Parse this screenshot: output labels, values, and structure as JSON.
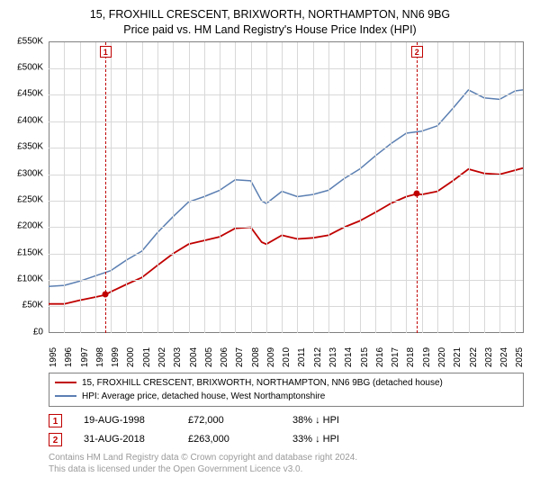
{
  "title": {
    "line1": "15, FROXHILL CRESCENT, BRIXWORTH, NORTHAMPTON, NN6 9BG",
    "line2": "Price paid vs. HM Land Registry's House Price Index (HPI)",
    "fontsize": 12.5,
    "color": "#000000"
  },
  "chart": {
    "type": "line",
    "background_color": "#ffffff",
    "grid_color": "#d8d8d8",
    "axis_color": "#808080",
    "xlim": [
      1995,
      2025.5
    ],
    "ylim": [
      0,
      550
    ],
    "y_unit": "K",
    "y_prefix": "£",
    "ytick_step": 50,
    "yticks": [
      0,
      50,
      100,
      150,
      200,
      250,
      300,
      350,
      400,
      450,
      500,
      550
    ],
    "xticks": [
      1995,
      1996,
      1997,
      1998,
      1999,
      2000,
      2001,
      2002,
      2003,
      2004,
      2005,
      2006,
      2007,
      2008,
      2009,
      2010,
      2011,
      2012,
      2013,
      2014,
      2015,
      2016,
      2017,
      2018,
      2019,
      2020,
      2021,
      2022,
      2023,
      2024,
      2025
    ],
    "tick_fontsize": 10,
    "series": [
      {
        "name": "property",
        "label": "15, FROXHILL CRESCENT, BRIXWORTH, NORTHAMPTON, NN6 9BG (detached house)",
        "color": "#c00000",
        "line_width": 1.8,
        "data": [
          [
            1995,
            55
          ],
          [
            1996,
            55
          ],
          [
            1997,
            62
          ],
          [
            1998,
            68
          ],
          [
            1998.63,
            72
          ],
          [
            1999,
            78
          ],
          [
            2000,
            92
          ],
          [
            2001,
            105
          ],
          [
            2002,
            128
          ],
          [
            2003,
            150
          ],
          [
            2004,
            168
          ],
          [
            2005,
            175
          ],
          [
            2006,
            182
          ],
          [
            2007,
            198
          ],
          [
            2008,
            200
          ],
          [
            2008.7,
            172
          ],
          [
            2009,
            168
          ],
          [
            2010,
            185
          ],
          [
            2011,
            178
          ],
          [
            2012,
            180
          ],
          [
            2013,
            185
          ],
          [
            2014,
            200
          ],
          [
            2015,
            212
          ],
          [
            2016,
            228
          ],
          [
            2017,
            245
          ],
          [
            2018,
            258
          ],
          [
            2018.66,
            263
          ],
          [
            2019,
            262
          ],
          [
            2020,
            268
          ],
          [
            2021,
            288
          ],
          [
            2022,
            310
          ],
          [
            2023,
            302
          ],
          [
            2024,
            300
          ],
          [
            2025,
            308
          ],
          [
            2025.5,
            312
          ]
        ]
      },
      {
        "name": "hpi",
        "label": "HPI: Average price, detached house, West Northamptonshire",
        "color": "#5b7fb2",
        "line_width": 1.5,
        "data": [
          [
            1995,
            88
          ],
          [
            1996,
            90
          ],
          [
            1997,
            98
          ],
          [
            1998,
            108
          ],
          [
            1999,
            118
          ],
          [
            2000,
            138
          ],
          [
            2001,
            155
          ],
          [
            2002,
            190
          ],
          [
            2003,
            220
          ],
          [
            2004,
            248
          ],
          [
            2005,
            258
          ],
          [
            2006,
            270
          ],
          [
            2007,
            290
          ],
          [
            2008,
            288
          ],
          [
            2008.7,
            250
          ],
          [
            2009,
            245
          ],
          [
            2010,
            268
          ],
          [
            2011,
            258
          ],
          [
            2012,
            262
          ],
          [
            2013,
            270
          ],
          [
            2014,
            292
          ],
          [
            2015,
            310
          ],
          [
            2016,
            335
          ],
          [
            2017,
            358
          ],
          [
            2018,
            378
          ],
          [
            2019,
            382
          ],
          [
            2020,
            392
          ],
          [
            2021,
            425
          ],
          [
            2022,
            460
          ],
          [
            2023,
            445
          ],
          [
            2024,
            442
          ],
          [
            2025,
            458
          ],
          [
            2025.5,
            460
          ]
        ]
      }
    ],
    "markers": [
      {
        "id": "1",
        "x": 1998.63,
        "y": 72,
        "color": "#c00000"
      },
      {
        "id": "2",
        "x": 2018.66,
        "y": 263,
        "color": "#c00000"
      }
    ]
  },
  "legend": {
    "border_color": "#808080",
    "fontsize": 10,
    "items": [
      {
        "color": "#c00000",
        "label": "15, FROXHILL CRESCENT, BRIXWORTH, NORTHAMPTON, NN6 9BG (detached house)"
      },
      {
        "color": "#5b7fb2",
        "label": "HPI: Average price, detached house, West Northamptonshire"
      }
    ]
  },
  "datapoints": {
    "fontsize": 11,
    "box_color": "#c00000",
    "rows": [
      {
        "id": "1",
        "date": "19-AUG-1998",
        "price": "£72,000",
        "pct": "38% ↓ HPI"
      },
      {
        "id": "2",
        "date": "31-AUG-2018",
        "price": "£263,000",
        "pct": "33% ↓ HPI"
      }
    ]
  },
  "footer": {
    "line1": "Contains HM Land Registry data © Crown copyright and database right 2024.",
    "line2": "This data is licensed under the Open Government Licence v3.0.",
    "color": "#9a9a9a",
    "fontsize": 10
  }
}
